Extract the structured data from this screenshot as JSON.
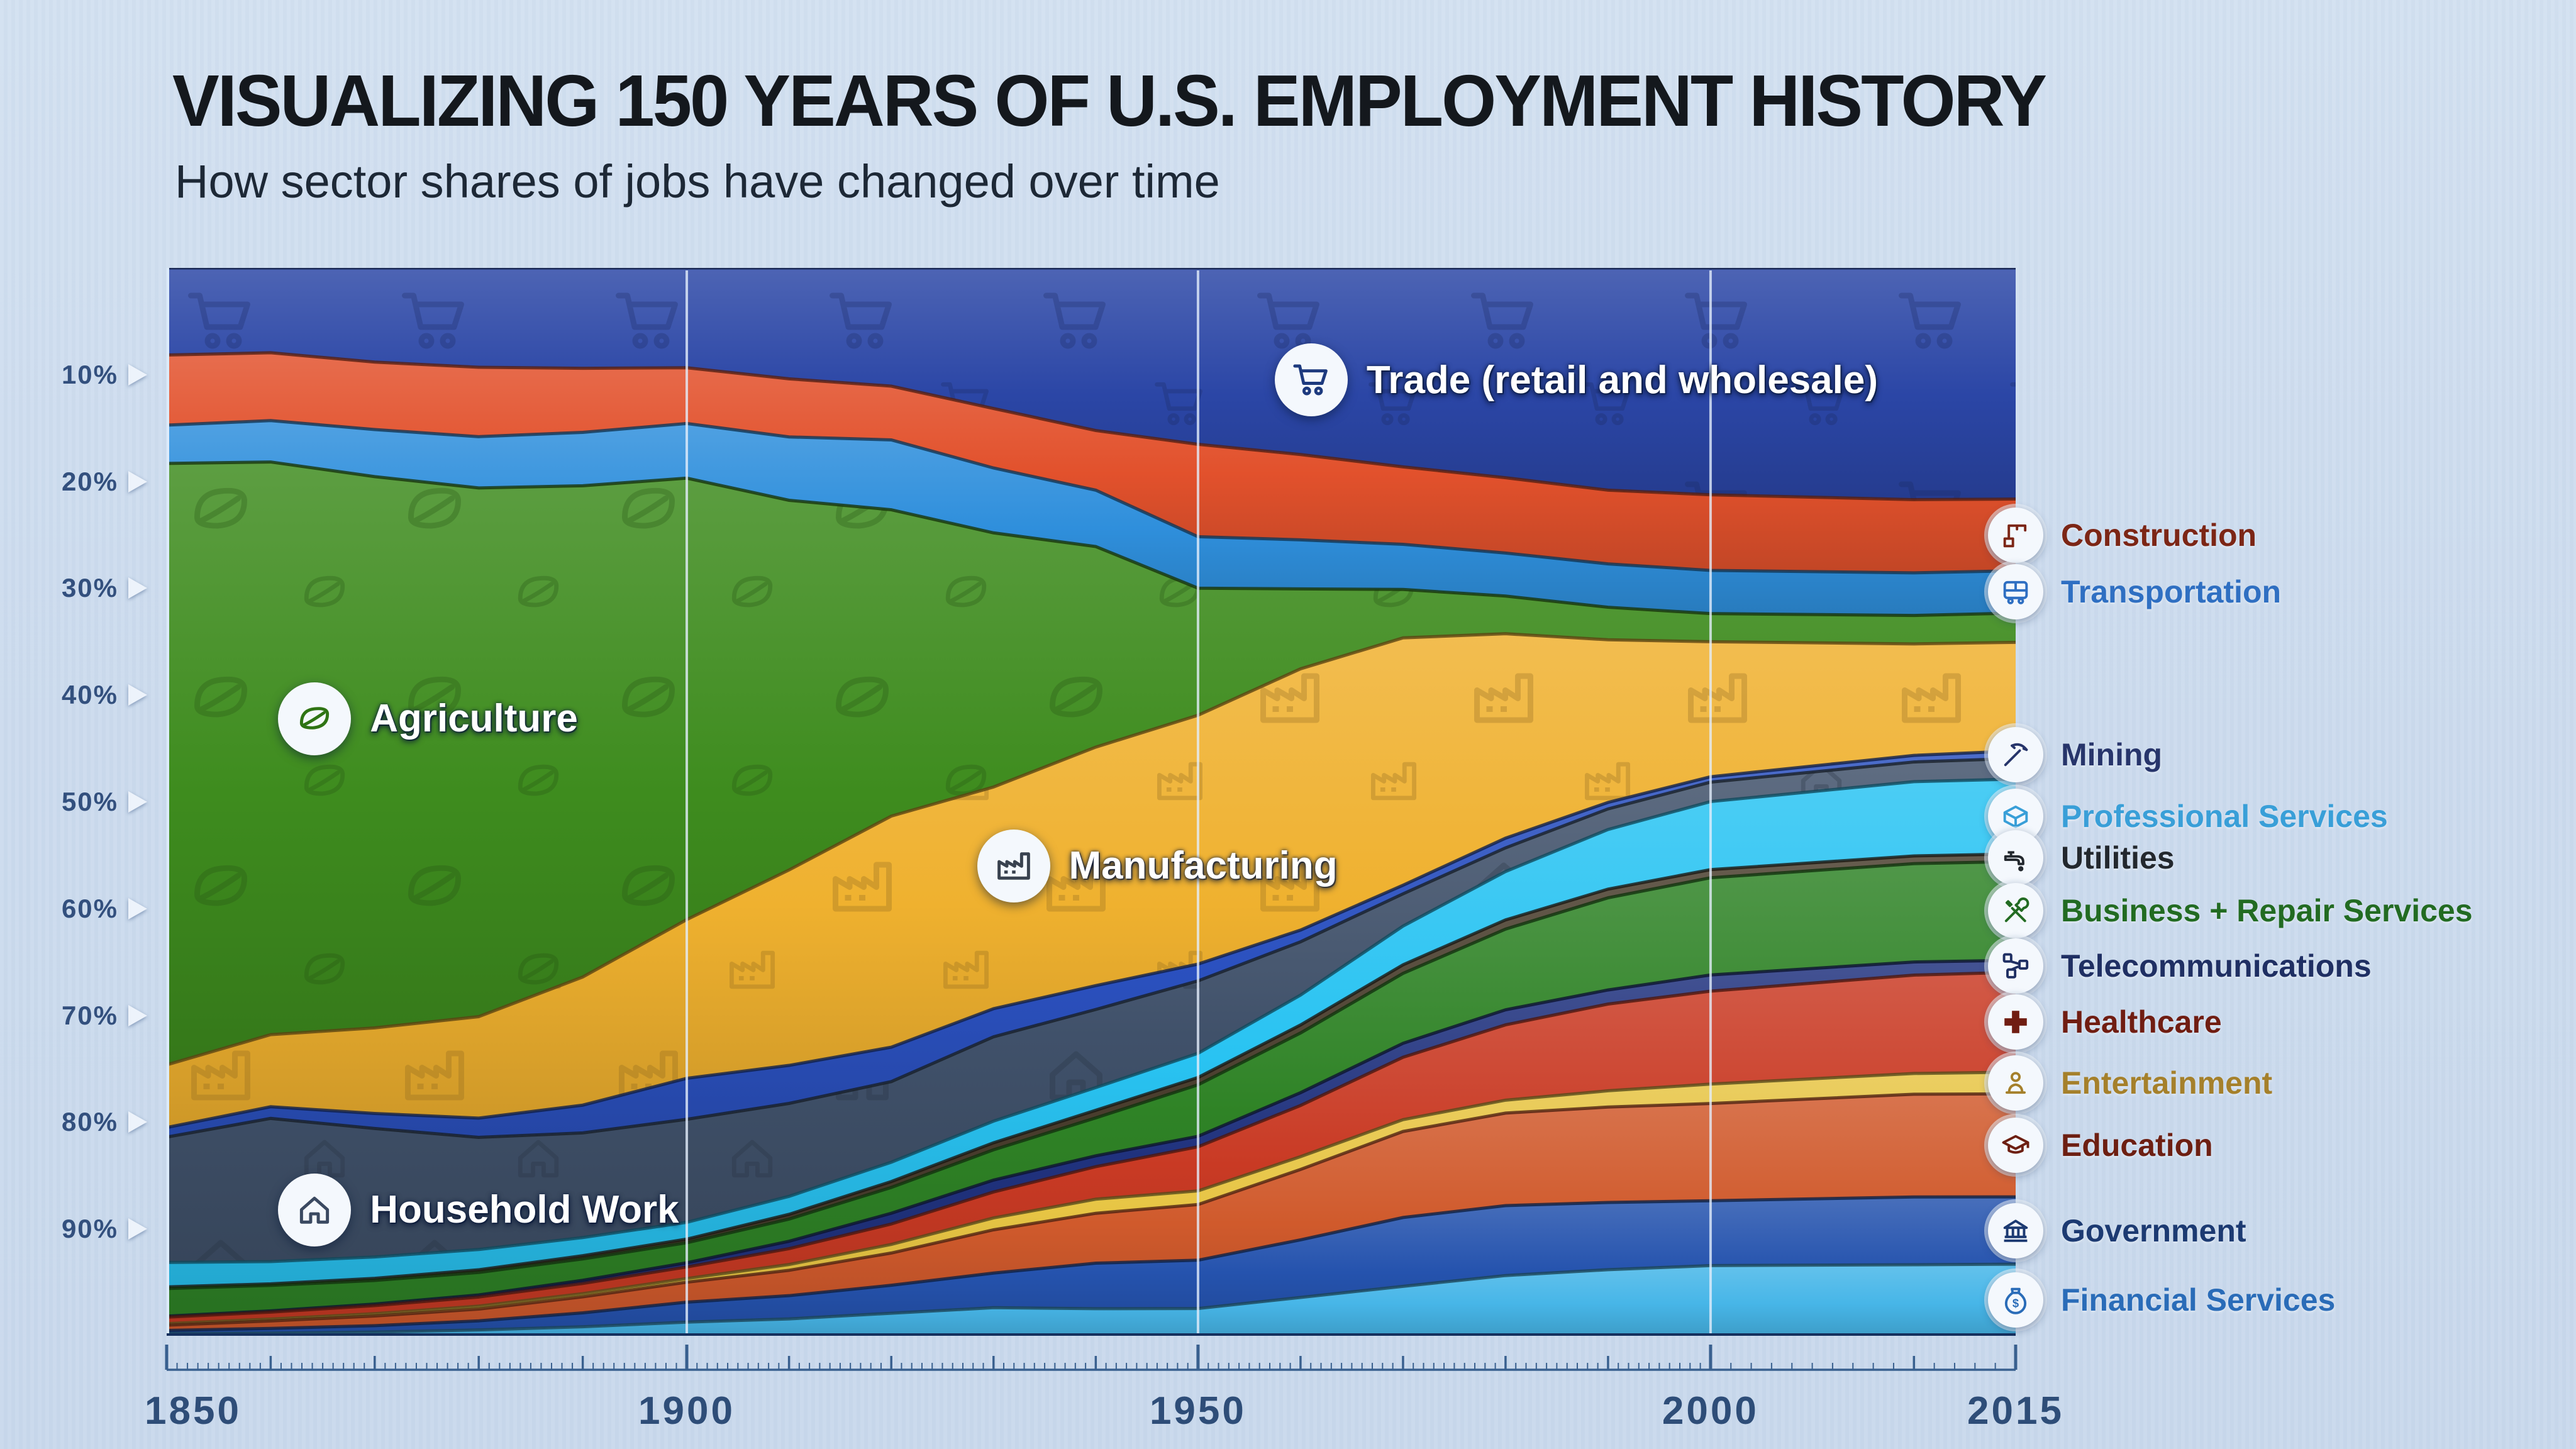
{
  "header": {
    "title": "VISUALIZING 150 YEARS OF U.S. EMPLOYMENT HISTORY",
    "subtitle": "How sector shares of jobs have changed over time"
  },
  "y_axis": {
    "ticks": [
      "10%",
      "20%",
      "30%",
      "40%",
      "50%",
      "60%",
      "70%",
      "80%",
      "90%"
    ]
  },
  "x_axis": {
    "labels": [
      "1850",
      "1900",
      "1950",
      "2000",
      "2015"
    ],
    "label_years": [
      1850,
      1900,
      1950,
      2000,
      2015
    ]
  },
  "chart_data": {
    "type": "area",
    "stacked": true,
    "unit": "percent of jobs",
    "ylim": [
      0,
      100
    ],
    "grid_years": [
      1900,
      1950,
      2000
    ],
    "x": [
      1850,
      1860,
      1870,
      1880,
      1890,
      1900,
      1910,
      1920,
      1930,
      1940,
      1950,
      1960,
      1970,
      1980,
      1990,
      2000,
      2010,
      2015
    ],
    "x_anchors": [
      [
        1850,
        0
      ],
      [
        1900,
        0.2813
      ],
      [
        1950,
        0.5578
      ],
      [
        2000,
        0.835
      ],
      [
        2015,
        1
      ]
    ],
    "series": [
      {
        "name": "Trade (retail and wholesale)",
        "color": "#2b46a6",
        "icon": "cart",
        "pattern_icon": "cart",
        "in_legend": false,
        "values": [
          8.2,
          8.0,
          8.8,
          9.3,
          9.4,
          9.5,
          10.5,
          11.0,
          13.0,
          15.0,
          16.8,
          17.5,
          18.5,
          19.5,
          20.5,
          21.0,
          21.2,
          21.3
        ]
      },
      {
        "name": "Construction",
        "color": "#e2512c",
        "label_color": "#7c2616",
        "icon": "crane",
        "in_legend": true,
        "values": [
          6.6,
          6.4,
          6.3,
          6.5,
          6.0,
          5.3,
          5.5,
          5.0,
          5.5,
          5.5,
          8.8,
          8.0,
          7.2,
          7.0,
          6.8,
          7.0,
          6.7,
          6.6
        ]
      },
      {
        "name": "Transportation",
        "color": "#2f8fdc",
        "label_color": "#2f6fc2",
        "icon": "bus",
        "in_legend": true,
        "values": [
          3.6,
          3.9,
          4.4,
          4.8,
          5.0,
          5.2,
          6.0,
          6.5,
          6.0,
          5.2,
          4.9,
          4.6,
          4.2,
          4.0,
          4.0,
          4.0,
          3.9,
          3.9
        ]
      },
      {
        "name": "Agriculture",
        "color": "#3e8c1e",
        "icon": "wheat",
        "pattern_icon": "wheat",
        "in_legend": false,
        "values": [
          56.6,
          54.0,
          51.5,
          49.5,
          46.0,
          42.0,
          35.0,
          28.5,
          23.5,
          18.5,
          12.1,
          7.5,
          4.5,
          3.5,
          3.0,
          2.6,
          2.6,
          2.7
        ]
      },
      {
        "name": "Manufacturing",
        "color": "#efb12f",
        "icon": "factory",
        "pattern_icon": "factory",
        "in_legend": false,
        "values": [
          5.9,
          6.8,
          8.0,
          9.5,
          12.0,
          15.1,
          18.5,
          21.5,
          20.5,
          22.0,
          23.7,
          24.5,
          23.0,
          19.0,
          15.0,
          12.5,
          10.2,
          10.0
        ]
      },
      {
        "name": "Mining",
        "color": "#2b51c0",
        "label_color": "#27356b",
        "icon": "pickaxe",
        "in_legend": true,
        "values": [
          0.9,
          1.1,
          1.4,
          1.8,
          2.6,
          3.9,
          3.6,
          3.2,
          2.6,
          2.2,
          1.6,
          1.1,
          0.8,
          0.9,
          0.6,
          0.5,
          0.6,
          0.7
        ]
      },
      {
        "name": "Household Work",
        "color": "#40516a",
        "icon": "house",
        "pattern_icon": "house",
        "in_legend": false,
        "values": [
          11.8,
          13.5,
          12.0,
          10.5,
          9.8,
          9.8,
          8.8,
          7.5,
          7.8,
          7.2,
          6.9,
          5.0,
          3.0,
          2.2,
          1.9,
          1.8,
          1.8,
          1.9
        ]
      },
      {
        "name": "Professional Services",
        "color": "#29c3f2",
        "label_color": "#399fd8",
        "icon": "box",
        "in_legend": true,
        "values": [
          2.3,
          2.1,
          2.0,
          1.9,
          1.7,
          1.6,
          1.7,
          1.8,
          2.0,
          2.1,
          2.3,
          2.8,
          3.6,
          4.5,
          5.5,
          6.3,
          6.8,
          6.9
        ]
      },
      {
        "name": "Utilities",
        "color": "#4a3e2e",
        "label_color": "#23282e",
        "icon": "faucet",
        "in_legend": true,
        "values": [
          0.15,
          0.15,
          0.2,
          0.25,
          0.3,
          0.35,
          0.45,
          0.55,
          0.65,
          0.7,
          0.7,
          0.75,
          0.8,
          0.85,
          0.8,
          0.75,
          0.7,
          0.7
        ]
      },
      {
        "name": "Business + Repair Services",
        "color": "#2f8326",
        "label_color": "#226b22",
        "icon": "tools",
        "in_legend": true,
        "values": [
          2.6,
          2.4,
          2.2,
          2.1,
          2.0,
          1.9,
          2.1,
          2.4,
          2.8,
          3.5,
          4.9,
          5.6,
          6.5,
          7.5,
          8.5,
          9.0,
          9.0,
          9.1
        ]
      },
      {
        "name": "Telecommunications",
        "color": "#20327e",
        "label_color": "#1f2f63",
        "icon": "network",
        "in_legend": true,
        "values": [
          0.1,
          0.12,
          0.15,
          0.2,
          0.3,
          0.4,
          0.7,
          1.0,
          1.1,
          1.0,
          1.0,
          1.2,
          1.3,
          1.4,
          1.3,
          1.5,
          1.2,
          1.1
        ]
      },
      {
        "name": "Healthcare",
        "color": "#c93a24",
        "label_color": "#701d12",
        "icon": "cross",
        "in_legend": true,
        "values": [
          0.6,
          0.65,
          0.75,
          0.85,
          0.95,
          1.1,
          1.5,
          1.9,
          2.4,
          3.0,
          4.2,
          4.8,
          5.8,
          7.0,
          8.0,
          8.6,
          9.0,
          9.2
        ]
      },
      {
        "name": "Entertainment",
        "color": "#e7c544",
        "label_color": "#a5802b",
        "icon": "pawn",
        "in_legend": true,
        "values": [
          0.15,
          0.18,
          0.22,
          0.28,
          0.3,
          0.35,
          0.55,
          0.8,
          1.1,
          1.3,
          1.3,
          1.2,
          1.1,
          1.2,
          1.5,
          1.8,
          1.9,
          2.0
        ]
      },
      {
        "name": "Education",
        "color": "#d05a2c",
        "label_color": "#6d1f12",
        "icon": "gradcap",
        "in_legend": true,
        "values": [
          0.5,
          0.7,
          0.9,
          1.1,
          1.5,
          1.9,
          2.4,
          3.0,
          4.0,
          4.6,
          5.3,
          6.6,
          8.0,
          8.6,
          8.8,
          9.0,
          9.4,
          9.5
        ]
      },
      {
        "name": "Government",
        "color": "#2553ae",
        "label_color": "#1c3a72",
        "icon": "bank",
        "in_legend": true,
        "values": [
          0.3,
          0.45,
          0.6,
          0.85,
          1.3,
          1.9,
          2.2,
          2.6,
          3.2,
          4.2,
          4.6,
          5.4,
          6.4,
          6.5,
          6.2,
          6.0,
          6.2,
          6.2
        ]
      },
      {
        "name": "Financial Services",
        "color": "#47b6e8",
        "label_color": "#2a6cb8",
        "icon": "moneybag",
        "in_legend": true,
        "values": [
          0.2,
          0.25,
          0.35,
          0.55,
          0.85,
          1.3,
          1.6,
          2.1,
          2.6,
          2.5,
          2.6,
          3.6,
          4.6,
          5.6,
          6.1,
          6.5,
          6.5,
          6.6
        ]
      }
    ],
    "annotations": [
      {
        "series": "Trade (retail and wholesale)",
        "text": "Trade (retail and wholesale)",
        "icon": "cart",
        "icon_color": "#1d3a7e",
        "fx": 0.619,
        "fy": 0.105
      },
      {
        "series": "Agriculture",
        "text": "Agriculture",
        "icon": "wheat",
        "icon_color": "#2f7414",
        "fx": 0.08,
        "fy": 0.422
      },
      {
        "series": "Manufacturing",
        "text": "Manufacturing",
        "icon": "factory",
        "icon_color": "#39424f",
        "fx": 0.458,
        "fy": 0.56
      },
      {
        "series": "Household Work",
        "text": "Household Work",
        "icon": "house",
        "icon_color": "#3a4961",
        "fx": 0.08,
        "fy": 0.882
      }
    ]
  }
}
